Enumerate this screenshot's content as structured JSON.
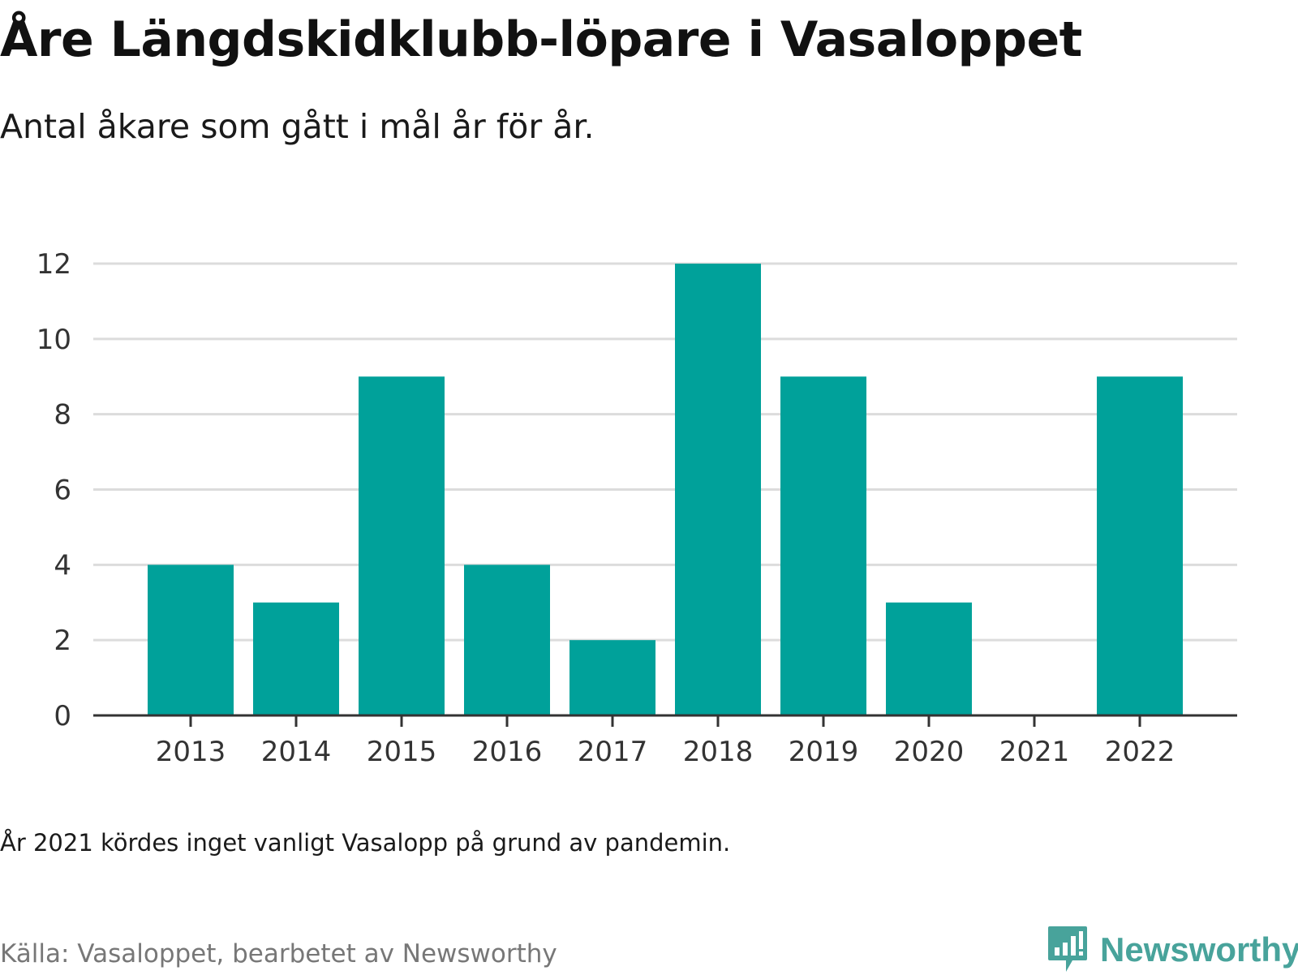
{
  "chart_data": {
    "type": "bar",
    "title": "Åre Längdskidklubb-löpare i Vasaloppet",
    "subtitle": "Antal åkare som gått i mål år för år.",
    "categories": [
      "2013",
      "2014",
      "2015",
      "2016",
      "2017",
      "2018",
      "2019",
      "2020",
      "2021",
      "2022"
    ],
    "values": [
      4,
      3,
      9,
      4,
      2,
      12,
      9,
      3,
      0,
      9
    ],
    "xlabel": "",
    "ylabel": "",
    "ylim": [
      0,
      12
    ],
    "yticks": [
      0,
      2,
      4,
      6,
      8,
      10,
      12
    ],
    "grid": true,
    "bar_color": "#00a19a",
    "note": "År 2021 kördes inget vanligt Vasalopp på grund av pandemin.",
    "source": "Källa: Vasaloppet, bearbetet av Newsworthy"
  },
  "brand": {
    "name": "Newsworthy",
    "icon": "newsworthy-logo-icon",
    "color": "#48a39b"
  }
}
